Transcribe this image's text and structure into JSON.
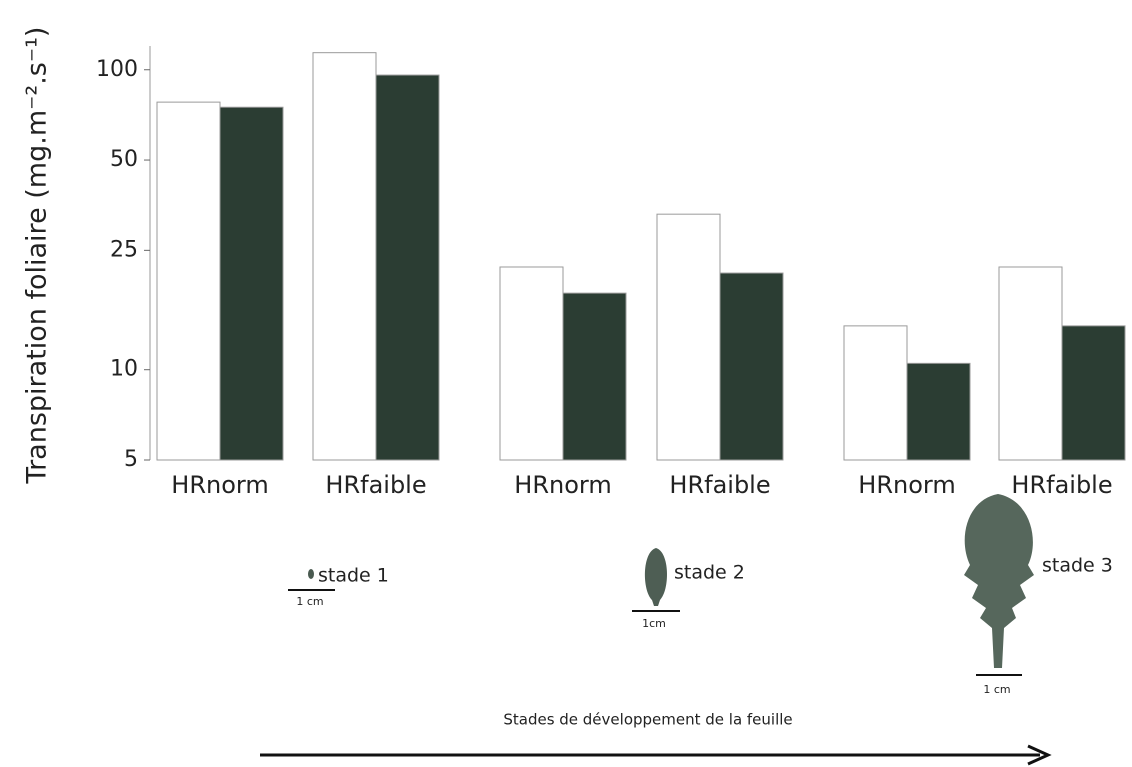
{
  "chart_data": {
    "type": "bar",
    "ylabel": "Transpiration foliaire (mg.m⁻².s⁻¹)",
    "xlabel": "Stades de développement de la feuille",
    "categories": [
      "HRnorm",
      "HRfaible",
      "HRnorm",
      "HRfaible",
      "HRnorm",
      "HRfaible"
    ],
    "series": [
      {
        "color": "#ffffff",
        "values": [
          78,
          114,
          22,
          33,
          14,
          22
        ]
      },
      {
        "color": "#2b3d33",
        "values": [
          75,
          96,
          18,
          21,
          10.5,
          14
        ]
      }
    ],
    "ylim": [
      5,
      120
    ],
    "yticks": [
      5,
      10,
      25,
      50,
      100
    ],
    "log_scale": true,
    "stages": [
      "stade 1",
      "stade 2",
      "stade 3"
    ],
    "scale_labels": [
      "1 cm",
      "1cm",
      "1 cm"
    ]
  }
}
